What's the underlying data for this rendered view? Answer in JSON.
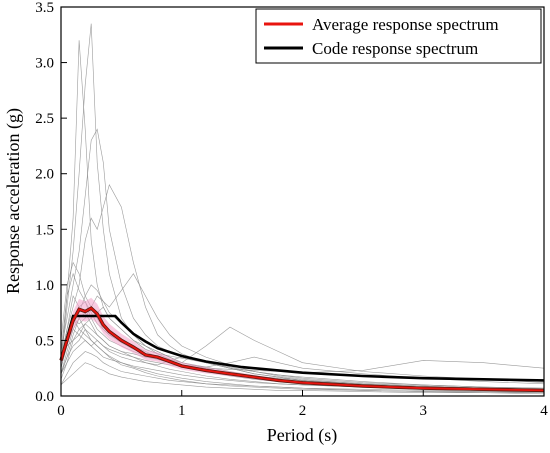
{
  "chart_data": {
    "type": "line",
    "xlabel": "Period (s)",
    "ylabel": "Response acceleration (g)",
    "xlim": [
      0,
      4
    ],
    "ylim": [
      0,
      3.5
    ],
    "x_ticks": [
      0,
      1,
      2,
      3,
      4
    ],
    "x_tick_labels": [
      "0",
      "1",
      "2",
      "3",
      "4"
    ],
    "y_ticks": [
      0,
      0.5,
      1.0,
      1.5,
      2.0,
      2.5,
      3.0,
      3.5
    ],
    "y_tick_labels": [
      "0.0",
      "0.5",
      "1.0",
      "1.5",
      "2.0",
      "2.5",
      "3.0",
      "3.5"
    ],
    "grid": false,
    "legend_position": "top-right",
    "colors": {
      "average": "#e8140f",
      "code": "#000000",
      "records": "#8a8a8a",
      "band": "#f2a0c8"
    },
    "series": [
      {
        "name": "Average response spectrum",
        "role": "average",
        "x": [
          0,
          0.05,
          0.1,
          0.15,
          0.2,
          0.25,
          0.3,
          0.35,
          0.4,
          0.5,
          0.6,
          0.7,
          0.8,
          0.9,
          1.0,
          1.2,
          1.4,
          1.6,
          1.8,
          2.0,
          2.5,
          3.0,
          3.5,
          4.0
        ],
        "y": [
          0.32,
          0.5,
          0.68,
          0.78,
          0.76,
          0.79,
          0.74,
          0.64,
          0.58,
          0.5,
          0.44,
          0.37,
          0.35,
          0.31,
          0.27,
          0.23,
          0.2,
          0.17,
          0.14,
          0.12,
          0.09,
          0.07,
          0.06,
          0.05
        ]
      },
      {
        "name": "Code response spectrum",
        "role": "code",
        "x": [
          0,
          0.1,
          0.2,
          0.3,
          0.4,
          0.45,
          0.5,
          0.6,
          0.7,
          0.8,
          1.0,
          1.2,
          1.5,
          2.0,
          2.5,
          3.0,
          3.5,
          4.0
        ],
        "y": [
          0.32,
          0.72,
          0.72,
          0.72,
          0.72,
          0.72,
          0.66,
          0.56,
          0.49,
          0.43,
          0.36,
          0.31,
          0.26,
          0.21,
          0.18,
          0.16,
          0.15,
          0.14
        ]
      }
    ],
    "record_x": [
      0,
      0.05,
      0.1,
      0.15,
      0.2,
      0.25,
      0.3,
      0.35,
      0.4,
      0.5,
      0.6,
      0.7,
      0.8,
      0.9,
      1.0,
      1.2,
      1.4,
      1.6,
      1.8,
      2.0,
      2.5,
      3.0,
      3.5,
      4.0
    ],
    "records": [
      [
        0.3,
        0.9,
        1.6,
        3.2,
        2.4,
        1.4,
        1.0,
        0.8,
        0.7,
        0.6,
        0.5,
        0.45,
        0.4,
        0.35,
        0.3,
        0.26,
        0.22,
        0.18,
        0.15,
        0.12,
        0.09,
        0.07,
        0.06,
        0.05
      ],
      [
        0.3,
        0.8,
        1.3,
        2.0,
        2.8,
        3.35,
        2.1,
        1.5,
        1.1,
        0.7,
        0.55,
        0.45,
        0.4,
        0.35,
        0.3,
        0.25,
        0.2,
        0.17,
        0.14,
        0.12,
        0.09,
        0.07,
        0.06,
        0.05
      ],
      [
        0.4,
        0.7,
        1.0,
        1.3,
        1.8,
        2.3,
        2.4,
        2.1,
        1.5,
        1.0,
        0.7,
        0.55,
        0.45,
        0.4,
        0.35,
        0.3,
        0.25,
        0.22,
        0.19,
        0.16,
        0.12,
        0.1,
        0.08,
        0.07
      ],
      [
        0.35,
        0.6,
        0.8,
        1.0,
        1.4,
        1.6,
        1.5,
        1.7,
        1.9,
        1.7,
        1.2,
        0.8,
        0.55,
        0.45,
        0.38,
        0.3,
        0.25,
        0.2,
        0.17,
        0.14,
        0.1,
        0.08,
        0.06,
        0.05
      ],
      [
        0.5,
        1.0,
        1.2,
        1.1,
        0.9,
        0.8,
        0.7,
        0.6,
        0.55,
        0.5,
        0.45,
        0.4,
        0.35,
        0.3,
        0.27,
        0.22,
        0.18,
        0.15,
        0.13,
        0.11,
        0.08,
        0.06,
        0.05,
        0.04
      ],
      [
        0.2,
        0.4,
        0.6,
        0.7,
        0.6,
        0.55,
        0.5,
        0.45,
        0.42,
        0.38,
        0.35,
        0.32,
        0.3,
        0.28,
        0.27,
        0.25,
        0.24,
        0.23,
        0.22,
        0.21,
        0.23,
        0.32,
        0.3,
        0.25
      ],
      [
        0.25,
        0.5,
        0.7,
        0.65,
        0.7,
        0.8,
        0.9,
        0.85,
        0.75,
        0.65,
        0.55,
        0.45,
        0.38,
        0.33,
        0.3,
        0.45,
        0.62,
        0.5,
        0.4,
        0.3,
        0.22,
        0.18,
        0.15,
        0.12
      ],
      [
        0.3,
        0.6,
        0.9,
        0.8,
        0.85,
        0.7,
        0.75,
        0.8,
        0.7,
        0.6,
        0.5,
        0.42,
        0.38,
        0.36,
        0.34,
        0.3,
        0.26,
        0.22,
        0.19,
        0.17,
        0.13,
        0.1,
        0.08,
        0.07
      ],
      [
        0.15,
        0.3,
        0.5,
        0.6,
        0.55,
        0.5,
        0.45,
        0.4,
        0.36,
        0.3,
        0.26,
        0.23,
        0.2,
        0.18,
        0.16,
        0.13,
        0.11,
        0.09,
        0.08,
        0.07,
        0.05,
        0.04,
        0.04,
        0.03
      ],
      [
        0.2,
        0.35,
        0.45,
        0.5,
        0.6,
        0.5,
        0.45,
        0.4,
        0.35,
        0.28,
        0.25,
        0.21,
        0.18,
        0.16,
        0.14,
        0.11,
        0.09,
        0.08,
        0.07,
        0.06,
        0.05,
        0.04,
        0.03,
        0.03
      ],
      [
        0.1,
        0.2,
        0.3,
        0.35,
        0.4,
        0.38,
        0.35,
        0.3,
        0.27,
        0.22,
        0.2,
        0.18,
        0.16,
        0.14,
        0.13,
        0.11,
        0.1,
        0.09,
        0.08,
        0.07,
        0.06,
        0.05,
        0.04,
        0.04
      ],
      [
        0.3,
        0.5,
        0.65,
        0.75,
        0.9,
        1.0,
        0.95,
        0.85,
        0.8,
        0.95,
        1.1,
        0.9,
        0.7,
        0.55,
        0.45,
        0.35,
        0.28,
        0.22,
        0.18,
        0.15,
        0.11,
        0.09,
        0.07,
        0.06
      ],
      [
        0.35,
        0.55,
        0.7,
        0.6,
        0.65,
        0.7,
        0.6,
        0.55,
        0.5,
        0.45,
        0.4,
        0.36,
        0.33,
        0.3,
        0.28,
        0.24,
        0.2,
        0.17,
        0.15,
        0.13,
        0.1,
        0.08,
        0.06,
        0.05
      ],
      [
        0.25,
        0.45,
        0.5,
        0.55,
        0.5,
        0.45,
        0.5,
        0.45,
        0.4,
        0.35,
        0.32,
        0.3,
        0.28,
        0.32,
        0.35,
        0.3,
        0.25,
        0.2,
        0.17,
        0.14,
        0.1,
        0.08,
        0.06,
        0.05
      ],
      [
        0.2,
        0.3,
        0.4,
        0.45,
        0.5,
        0.45,
        0.4,
        0.35,
        0.33,
        0.3,
        0.27,
        0.25,
        0.23,
        0.21,
        0.19,
        0.16,
        0.14,
        0.12,
        0.11,
        0.1,
        0.08,
        0.07,
        0.06,
        0.05
      ],
      [
        0.1,
        0.15,
        0.2,
        0.25,
        0.3,
        0.28,
        0.25,
        0.23,
        0.2,
        0.17,
        0.15,
        0.13,
        0.12,
        0.11,
        0.1,
        0.08,
        0.07,
        0.06,
        0.05,
        0.05,
        0.04,
        0.03,
        0.03,
        0.02
      ],
      [
        0.4,
        0.9,
        1.1,
        0.95,
        0.85,
        0.75,
        0.65,
        0.6,
        0.55,
        0.48,
        0.42,
        0.38,
        0.34,
        0.3,
        0.27,
        0.23,
        0.2,
        0.18,
        0.16,
        0.14,
        0.11,
        0.09,
        0.07,
        0.06
      ],
      [
        0.3,
        0.5,
        0.6,
        0.55,
        0.65,
        0.6,
        0.55,
        0.5,
        0.45,
        0.4,
        0.38,
        0.35,
        0.33,
        0.3,
        0.28,
        0.26,
        0.3,
        0.35,
        0.3,
        0.25,
        0.2,
        0.16,
        0.13,
        0.11
      ],
      [
        0.2,
        0.35,
        0.55,
        0.7,
        0.75,
        0.65,
        0.55,
        0.5,
        0.45,
        0.4,
        0.35,
        0.3,
        0.27,
        0.24,
        0.22,
        0.18,
        0.15,
        0.13,
        0.11,
        0.1,
        0.08,
        0.06,
        0.05,
        0.04
      ]
    ]
  }
}
